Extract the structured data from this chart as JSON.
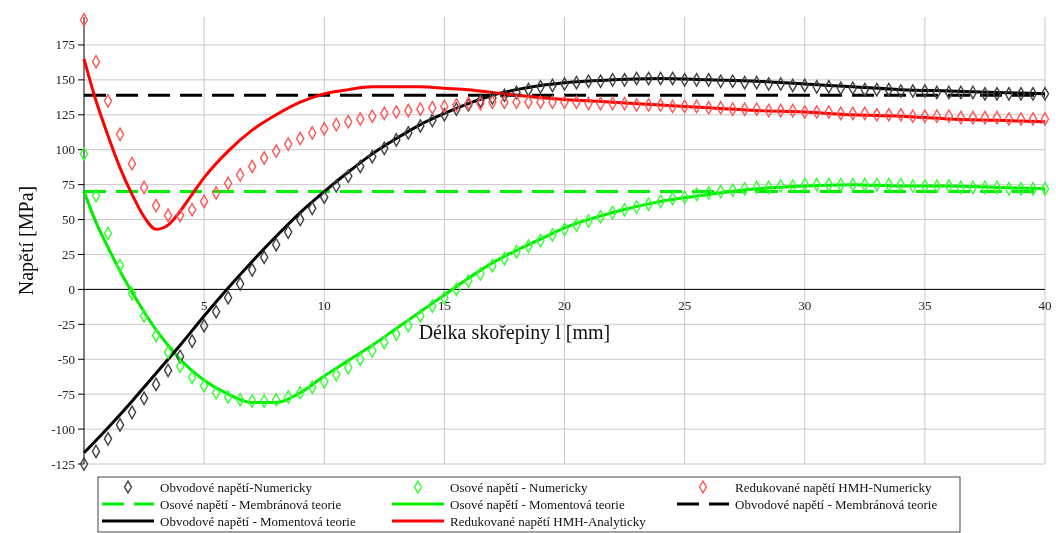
{
  "chart_data": {
    "type": "line",
    "xlabel": "Délka skořepiny l [mm]",
    "ylabel": "Napětí [MPa]",
    "xlim": [
      0,
      40
    ],
    "xticks": [
      5,
      10,
      15,
      20,
      25,
      30,
      35,
      40
    ],
    "ylim": [
      -125,
      195
    ],
    "yticks": [
      -125,
      -100,
      -75,
      -50,
      -25,
      0,
      25,
      50,
      75,
      100,
      125,
      150,
      175
    ],
    "grid": true,
    "legend": "bottom",
    "series": [
      {
        "name": "Obvodové napětí-Numericky",
        "type": "scatter",
        "marker": "diamond",
        "color": "#404040",
        "x": [
          0,
          0.5,
          1,
          1.5,
          2,
          2.5,
          3,
          3.5,
          4,
          4.5,
          5,
          5.5,
          6,
          6.5,
          7,
          7.5,
          8,
          8.5,
          9,
          9.5,
          10,
          10.5,
          11,
          11.5,
          12,
          12.5,
          13,
          13.5,
          14,
          14.5,
          15,
          15.5,
          16,
          16.5,
          17,
          17.5,
          18,
          18.5,
          19,
          19.5,
          20,
          20.5,
          21,
          21.5,
          22,
          22.5,
          23,
          23.5,
          24,
          24.5,
          25,
          25.5,
          26,
          26.5,
          27,
          27.5,
          28,
          28.5,
          29,
          29.5,
          30,
          30.5,
          31,
          31.5,
          32,
          32.5,
          33,
          33.5,
          34,
          34.5,
          35,
          35.5,
          36,
          36.5,
          37,
          37.5,
          38,
          38.5,
          39,
          39.5,
          40
        ],
        "values": [
          -125,
          -116,
          -107,
          -97,
          -88,
          -78,
          -68,
          -58,
          -48,
          -37,
          -26,
          -16,
          -6,
          4,
          14,
          23,
          32,
          41,
          50,
          58,
          66,
          74,
          81,
          88,
          95,
          101,
          107,
          112,
          117,
          121,
          125,
          129,
          132,
          135,
          137,
          139,
          141,
          143,
          145,
          146,
          147,
          148,
          149,
          149,
          150,
          150,
          151,
          151,
          151,
          151,
          150,
          150,
          150,
          149,
          149,
          148,
          148,
          147,
          147,
          146,
          146,
          145,
          145,
          144,
          144,
          143,
          143,
          143,
          142,
          142,
          142,
          141,
          141,
          141,
          141,
          140,
          140,
          140,
          140,
          140,
          140
        ]
      },
      {
        "name": "Osové napětí - Numericky",
        "type": "scatter",
        "marker": "diamond",
        "color": "#33ff33",
        "x": [
          0,
          0.5,
          1,
          1.5,
          2,
          2.5,
          3,
          3.5,
          4,
          4.5,
          5,
          5.5,
          6,
          6.5,
          7,
          7.5,
          8,
          8.5,
          9,
          9.5,
          10,
          10.5,
          11,
          11.5,
          12,
          12.5,
          13,
          13.5,
          14,
          14.5,
          15,
          15.5,
          16,
          16.5,
          17,
          17.5,
          18,
          18.5,
          19,
          19.5,
          20,
          20.5,
          21,
          21.5,
          22,
          22.5,
          23,
          23.5,
          24,
          24.5,
          25,
          25.5,
          26,
          26.5,
          27,
          27.5,
          28,
          28.5,
          29,
          29.5,
          30,
          30.5,
          31,
          31.5,
          32,
          32.5,
          33,
          33.5,
          34,
          34.5,
          35,
          35.5,
          36,
          36.5,
          37,
          37.5,
          38,
          38.5,
          39,
          39.5,
          40
        ],
        "values": [
          97,
          67,
          40,
          17,
          -3,
          -19,
          -33,
          -45,
          -55,
          -63,
          -69,
          -74,
          -77,
          -79,
          -80,
          -80,
          -79,
          -77,
          -74,
          -70,
          -66,
          -61,
          -56,
          -50,
          -44,
          -38,
          -32,
          -26,
          -19,
          -12,
          -6,
          0,
          6,
          11,
          17,
          22,
          27,
          31,
          35,
          39,
          43,
          46,
          49,
          52,
          55,
          57,
          59,
          61,
          63,
          65,
          66,
          68,
          69,
          70,
          71,
          72,
          73,
          73,
          74,
          74,
          75,
          75,
          75,
          75,
          75,
          75,
          75,
          75,
          75,
          74,
          74,
          74,
          74,
          73,
          73,
          73,
          73,
          72,
          72,
          72,
          72
        ]
      },
      {
        "name": "Redukované napětí HMH-Numericky",
        "type": "scatter",
        "marker": "diamond",
        "color": "#ff5555",
        "x": [
          0,
          0.5,
          1,
          1.5,
          2,
          2.5,
          3,
          3.5,
          4,
          4.5,
          5,
          5.5,
          6,
          6.5,
          7,
          7.5,
          8,
          8.5,
          9,
          9.5,
          10,
          10.5,
          11,
          11.5,
          12,
          12.5,
          13,
          13.5,
          14,
          14.5,
          15,
          15.5,
          16,
          16.5,
          17,
          17.5,
          18,
          18.5,
          19,
          19.5,
          20,
          20.5,
          21,
          21.5,
          22,
          22.5,
          23,
          23.5,
          24,
          24.5,
          25,
          25.5,
          26,
          26.5,
          27,
          27.5,
          28,
          28.5,
          29,
          29.5,
          30,
          30.5,
          31,
          31.5,
          32,
          32.5,
          33,
          33.5,
          34,
          34.5,
          35,
          35.5,
          36,
          36.5,
          37,
          37.5,
          38,
          38.5,
          39,
          39.5,
          40
        ],
        "values": [
          193,
          163,
          135,
          111,
          90,
          73,
          60,
          53,
          53,
          57,
          63,
          69,
          76,
          82,
          88,
          94,
          99,
          104,
          108,
          112,
          115,
          118,
          120,
          122,
          124,
          126,
          127,
          128,
          129,
          130,
          131,
          132,
          133,
          133,
          134,
          134,
          134,
          134,
          134,
          134,
          134,
          134,
          133,
          133,
          133,
          133,
          132,
          132,
          132,
          131,
          131,
          131,
          130,
          130,
          129,
          129,
          129,
          128,
          128,
          128,
          127,
          127,
          127,
          126,
          126,
          126,
          125,
          125,
          125,
          124,
          124,
          124,
          124,
          123,
          123,
          123,
          123,
          122,
          122,
          122,
          122
        ]
      },
      {
        "name": "Osové napětí - Membránová teorie",
        "line_style": "dashed",
        "color": "#00ee00",
        "x": [
          0,
          40
        ],
        "values": [
          70,
          70
        ]
      },
      {
        "name": "Osové napětí - Momentová teorie",
        "line_style": "solid",
        "color": "#00ee00",
        "x": [
          0,
          0.5,
          1,
          1.5,
          2,
          2.5,
          3,
          3.5,
          4,
          5,
          6,
          7,
          8,
          9,
          10,
          11,
          12,
          13,
          14,
          15,
          16,
          17,
          18,
          19,
          20,
          22,
          24,
          26,
          28,
          30,
          32,
          34,
          36,
          38,
          40
        ],
        "values": [
          70,
          48,
          30,
          13,
          -2,
          -16,
          -29,
          -40,
          -50,
          -65,
          -75,
          -81,
          -81,
          -74,
          -62,
          -51,
          -40,
          -28,
          -16,
          -4,
          8,
          19,
          28,
          36,
          44,
          55,
          63,
          68,
          72,
          74,
          75,
          74,
          74,
          73,
          72
        ]
      },
      {
        "name": "Obvodové napětí - Membránová teorie",
        "line_style": "dashed",
        "color": "#000000",
        "x": [
          0,
          40
        ],
        "values": [
          139,
          139
        ]
      },
      {
        "name": "Obvodové napětí - Momentová teorie",
        "line_style": "solid",
        "color": "#000000",
        "x": [
          0,
          1,
          2,
          3,
          4,
          5,
          6,
          7,
          8,
          9,
          10,
          11,
          12,
          13,
          14,
          15,
          16,
          17,
          18,
          19,
          20,
          22,
          24,
          26,
          28,
          30,
          32,
          34,
          36,
          38,
          40
        ],
        "values": [
          -117,
          -99,
          -80,
          -60,
          -40,
          -19,
          1,
          20,
          38,
          55,
          70,
          84,
          97,
          108,
          118,
          126,
          133,
          139,
          143,
          146,
          148,
          150,
          151,
          150,
          149,
          147,
          145,
          143,
          142,
          141,
          140
        ]
      },
      {
        "name": "Redukované napětí HMH-Analyticky",
        "line_style": "solid",
        "color": "#ff0000",
        "x": [
          0,
          0.5,
          1,
          1.5,
          2,
          2.5,
          3,
          3.5,
          4,
          4.5,
          5,
          6,
          7,
          8,
          9,
          10,
          11,
          12,
          13,
          14,
          15,
          16,
          17,
          18,
          20,
          22,
          24,
          26,
          28,
          30,
          32,
          34,
          36,
          38,
          40
        ],
        "values": [
          165,
          135,
          110,
          87,
          68,
          52,
          43,
          46,
          56,
          68,
          80,
          99,
          114,
          125,
          134,
          140,
          143,
          145,
          145,
          145,
          144,
          143,
          141,
          139,
          136,
          134,
          132,
          130,
          128,
          127,
          125,
          124,
          122,
          121,
          120
        ]
      }
    ]
  }
}
